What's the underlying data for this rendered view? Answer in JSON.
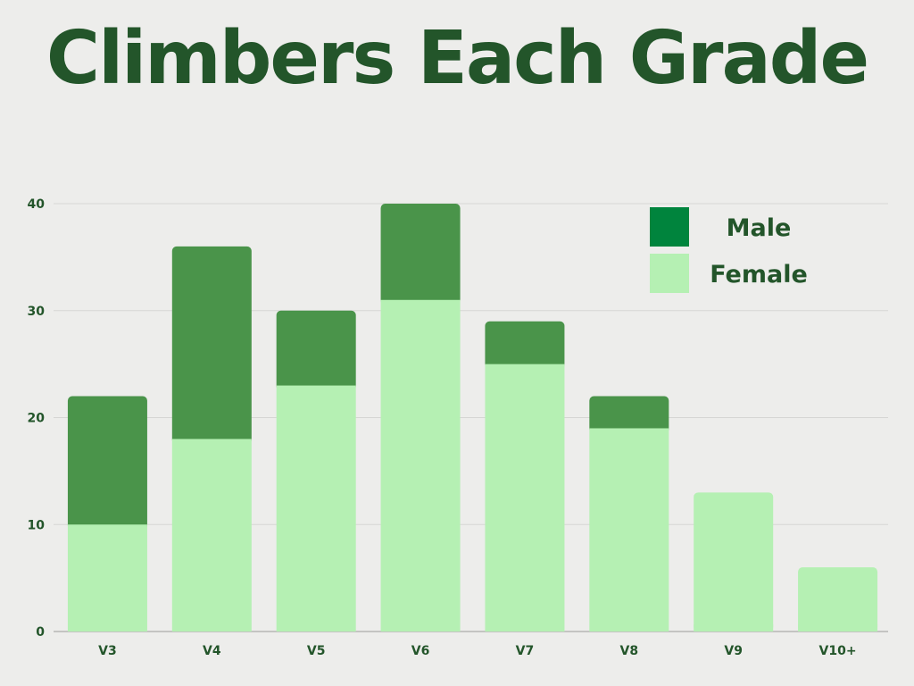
{
  "chart_data": {
    "type": "bar",
    "stacked": true,
    "title": "Climbers Each Grade",
    "xlabel": "",
    "ylabel": "",
    "categories": [
      "V3",
      "V4",
      "V5",
      "V6",
      "V7",
      "V8",
      "V9",
      "V10+"
    ],
    "series": [
      {
        "name": "Female",
        "values": [
          10,
          18,
          23,
          31,
          25,
          19,
          13,
          6
        ],
        "color": "#b5f0b3"
      },
      {
        "name": "Male",
        "values": [
          12,
          18,
          7,
          9,
          4,
          3,
          0,
          0
        ],
        "color": "#4a944a"
      }
    ],
    "ylim": [
      0,
      40
    ],
    "yticks": [
      "0",
      "10",
      "20",
      "30",
      "40"
    ],
    "grid": true,
    "legend": {
      "placement": "top-right",
      "items": [
        {
          "label": "Male",
          "color": "#00843d"
        },
        {
          "label": "Female",
          "color": "#b5f0b3"
        }
      ]
    }
  }
}
